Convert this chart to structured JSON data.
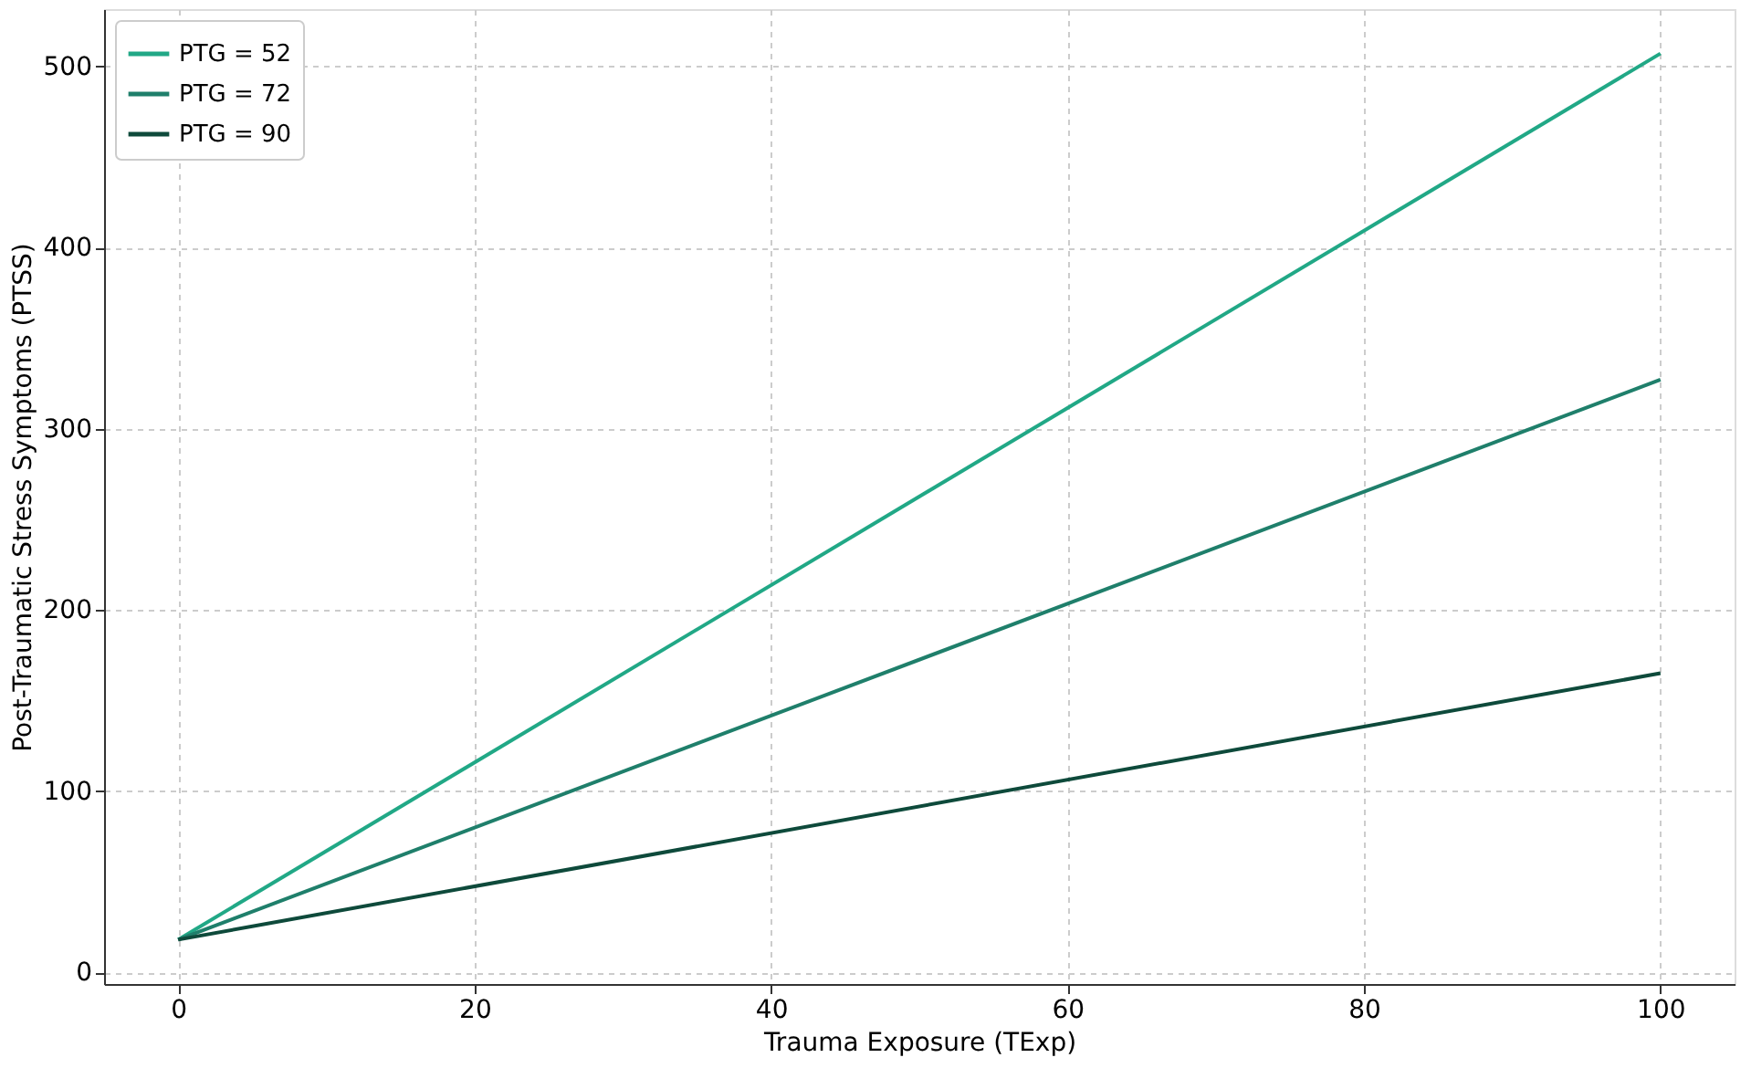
{
  "chart_data": {
    "type": "line",
    "xlabel": "Trauma Exposure (TExp)",
    "ylabel": "Post-Traumatic Stress Symptoms (PTSS)",
    "x": [
      0,
      100
    ],
    "series": [
      {
        "name": "PTG = 52",
        "color": "#21a886",
        "values": [
          18,
          507
        ]
      },
      {
        "name": "PTG = 72",
        "color": "#1f7f6b",
        "values": [
          18,
          327
        ]
      },
      {
        "name": "PTG = 90",
        "color": "#0e4a3b",
        "values": [
          18,
          165
        ]
      }
    ],
    "xlim": [
      -5,
      105
    ],
    "ylim": [
      -6.5,
      531.5
    ],
    "xticks": [
      0,
      20,
      40,
      60,
      80,
      100
    ],
    "yticks": [
      0,
      100,
      200,
      300,
      400,
      500
    ],
    "grid": true,
    "legend": "top left",
    "line_style": "solid",
    "marker": "none"
  }
}
